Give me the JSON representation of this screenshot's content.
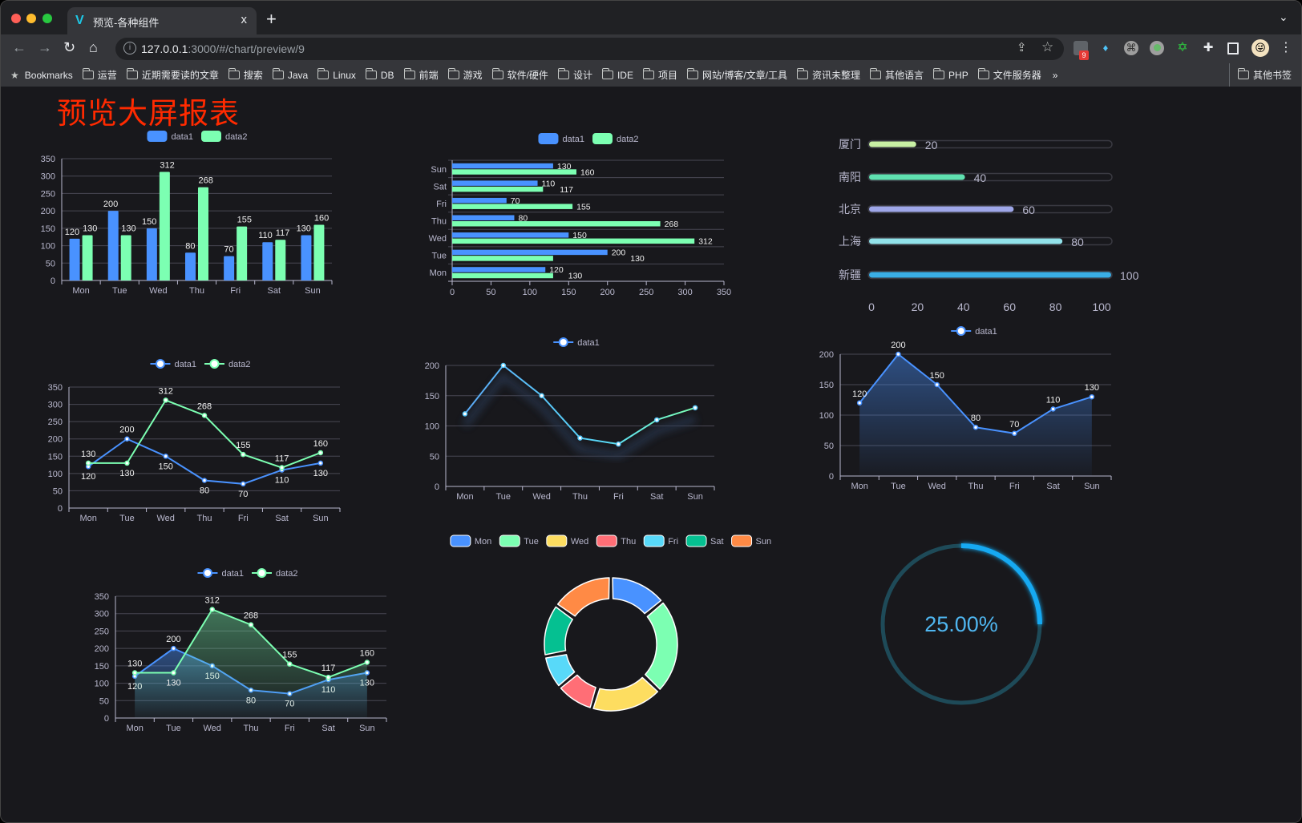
{
  "browser": {
    "tab_title": "预览-各种组件",
    "tab_close": "x",
    "new_tab": "+",
    "url_host": "127.0.0.1",
    "url_rest": ":3000/#/chart/preview/9",
    "extension_badge": "9",
    "bookmarks": [
      "运营",
      "近期需要读的文章",
      "搜索",
      "Java",
      "Linux",
      "DB",
      "前端",
      "游戏",
      "软件/硬件",
      "设计",
      "IDE",
      "项目",
      "网站/博客/文章/工具",
      "资讯未整理",
      "其他语言",
      "PHP",
      "文件服务器"
    ],
    "bookmarks_label": "Bookmarks",
    "overflow": "»",
    "other_bookmarks": "其他书签"
  },
  "page": {
    "title": "预览大屏报表",
    "title_color": "#ff2a00"
  },
  "colors": {
    "data1": "#4992ff",
    "data2": "#7cffb2",
    "axis_text": "#b9b8ce",
    "grid": "#484753",
    "background": "#18181c"
  },
  "chart_data": [
    {
      "type": "bar",
      "legend": "top",
      "grid": true,
      "categories": [
        "Mon",
        "Tue",
        "Wed",
        "Thu",
        "Fri",
        "Sat",
        "Sun"
      ],
      "series": [
        {
          "name": "data1",
          "values": [
            120,
            200,
            150,
            80,
            70,
            110,
            130
          ]
        },
        {
          "name": "data2",
          "values": [
            130,
            130,
            312,
            268,
            155,
            117,
            160
          ]
        }
      ],
      "ylim": [
        0,
        350
      ],
      "yticks": [
        0,
        50,
        100,
        150,
        200,
        250,
        300,
        350
      ]
    },
    {
      "type": "bar",
      "orientation": "horizontal",
      "legend": "top",
      "grid": true,
      "categories": [
        "Mon",
        "Tue",
        "Wed",
        "Thu",
        "Fri",
        "Sat",
        "Sun"
      ],
      "series": [
        {
          "name": "data1",
          "values": [
            120,
            200,
            150,
            80,
            70,
            110,
            130
          ]
        },
        {
          "name": "data2",
          "values": [
            130,
            130,
            312,
            268,
            155,
            117,
            160
          ]
        }
      ],
      "xlim": [
        0,
        350
      ],
      "xticks": [
        0,
        50,
        100,
        150,
        200,
        250,
        300,
        350
      ]
    },
    {
      "type": "bar",
      "orientation": "horizontal",
      "style": "progress",
      "categories": [
        "厦门",
        "南阳",
        "北京",
        "上海",
        "新疆"
      ],
      "values": [
        20,
        40,
        60,
        80,
        100
      ],
      "colors": [
        "#c8f0a4",
        "#5fe0b0",
        "#9ea6e8",
        "#92e2ea",
        "#3aaee6"
      ],
      "xlim": [
        0,
        100
      ],
      "xticks": [
        0,
        20,
        40,
        60,
        80,
        100
      ]
    },
    {
      "type": "line",
      "legend": "top",
      "grid": true,
      "categories": [
        "Mon",
        "Tue",
        "Wed",
        "Thu",
        "Fri",
        "Sat",
        "Sun"
      ],
      "series": [
        {
          "name": "data1",
          "values": [
            120,
            200,
            150,
            80,
            70,
            110,
            130
          ]
        },
        {
          "name": "data2",
          "values": [
            130,
            130,
            312,
            268,
            155,
            117,
            160
          ]
        }
      ],
      "ylim": [
        0,
        350
      ],
      "yticks": [
        0,
        50,
        100,
        150,
        200,
        250,
        300,
        350
      ]
    },
    {
      "type": "line",
      "legend": "top",
      "grid": true,
      "gradient_line": true,
      "categories": [
        "Mon",
        "Tue",
        "Wed",
        "Thu",
        "Fri",
        "Sat",
        "Sun"
      ],
      "series": [
        {
          "name": "data1",
          "values": [
            120,
            200,
            150,
            80,
            70,
            110,
            130
          ]
        }
      ],
      "ylim": [
        0,
        200
      ],
      "yticks": [
        0,
        50,
        100,
        150,
        200
      ]
    },
    {
      "type": "area",
      "legend": "top",
      "grid": true,
      "categories": [
        "Mon",
        "Tue",
        "Wed",
        "Thu",
        "Fri",
        "Sat",
        "Sun"
      ],
      "series": [
        {
          "name": "data1",
          "values": [
            120,
            200,
            150,
            80,
            70,
            110,
            130
          ]
        }
      ],
      "ylim": [
        0,
        200
      ],
      "yticks": [
        0,
        50,
        100,
        150,
        200
      ]
    },
    {
      "type": "area",
      "legend": "top",
      "grid": true,
      "categories": [
        "Mon",
        "Tue",
        "Wed",
        "Thu",
        "Fri",
        "Sat",
        "Sun"
      ],
      "series": [
        {
          "name": "data1",
          "values": [
            120,
            200,
            150,
            80,
            70,
            110,
            130
          ]
        },
        {
          "name": "data2",
          "values": [
            130,
            130,
            312,
            268,
            155,
            117,
            160
          ]
        }
      ],
      "ylim": [
        0,
        350
      ],
      "yticks": [
        0,
        50,
        100,
        150,
        200,
        250,
        300,
        350
      ]
    },
    {
      "type": "pie",
      "donut": true,
      "legend": "top",
      "categories": [
        "Mon",
        "Tue",
        "Wed",
        "Thu",
        "Fri",
        "Sat",
        "Sun"
      ],
      "values": [
        120,
        200,
        150,
        80,
        70,
        110,
        130
      ],
      "colors": [
        "#4992ff",
        "#7cffb2",
        "#fddd60",
        "#ff6e76",
        "#58d9f9",
        "#05c091",
        "#ff8a45"
      ]
    },
    {
      "type": "gauge",
      "value": 25,
      "label": "25.00%",
      "color": "#12a9f2",
      "track_color": "#1e4a58",
      "label_color": "#4fb6f0"
    }
  ]
}
